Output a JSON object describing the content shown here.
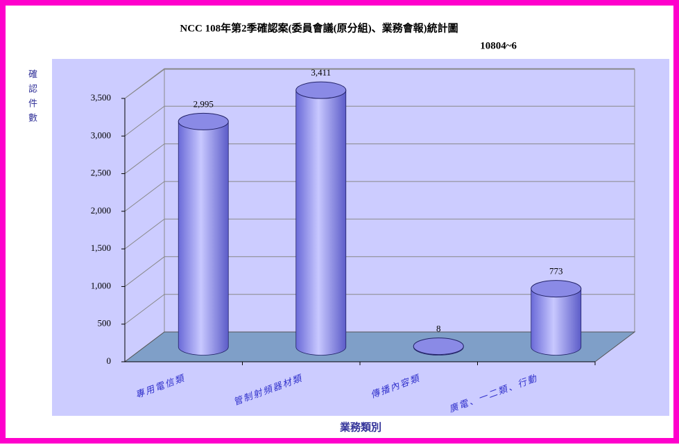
{
  "chart_data": {
    "type": "bar3d",
    "title": "NCC  108年第2季確認案(委員會議(原分組)、業務會報)統計圖",
    "subtitle": "10804~6",
    "y_label": "確認件數",
    "x_label": "業務類別",
    "categories": [
      "專用電信類",
      "管制射頻器材類",
      "傳播內容類",
      "廣電、一二類、行動"
    ],
    "values": [
      2995,
      3411,
      8,
      773
    ],
    "value_labels": [
      "2,995",
      "3,411",
      "8",
      "773"
    ],
    "color": "#9999ff",
    "ylim": [
      0,
      3500
    ],
    "yticks": [
      0,
      500,
      {
        "value": 1000,
        "label": "1,000"
      },
      {
        "value": 1500,
        "label": "1,500"
      },
      {
        "value": 2000,
        "label": "2,000"
      },
      {
        "value": 2500,
        "label": "2,500"
      },
      {
        "value": 3000,
        "label": "3,000"
      },
      {
        "value": 3500,
        "label": "3,500"
      }
    ],
    "grid": true
  }
}
